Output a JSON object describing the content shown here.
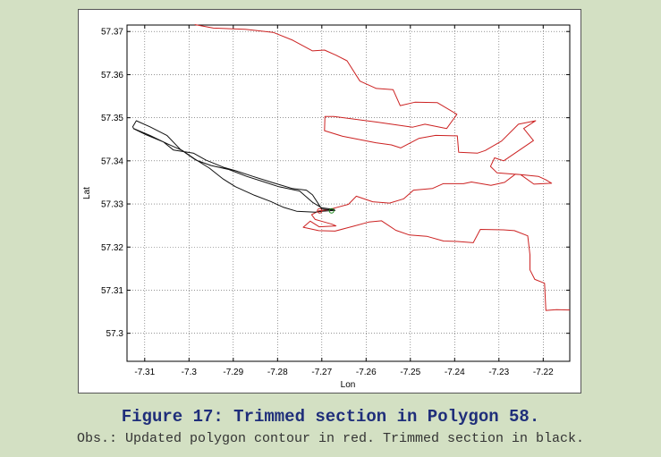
{
  "caption": {
    "title": "Figure 17: Trimmed section in Polygon 58.",
    "note": "Obs.: Updated polygon contour in red. Trimmed section in black."
  },
  "chart_data": {
    "type": "line",
    "title": "",
    "xlabel": "Lon",
    "ylabel": "Lat",
    "xlim": [
      -7.314,
      -7.214
    ],
    "ylim": [
      57.2935,
      57.3715
    ],
    "grid": true,
    "xticks": [
      -7.31,
      -7.3,
      -7.29,
      -7.28,
      -7.27,
      -7.26,
      -7.25,
      -7.24,
      -7.23,
      -7.22
    ],
    "xtick_labels": [
      "-7.31",
      "-7.3",
      "-7.29",
      "-7.28",
      "-7.27",
      "-7.26",
      "-7.25",
      "-7.24",
      "-7.23",
      "-7.22"
    ],
    "yticks": [
      57.3,
      57.31,
      57.32,
      57.33,
      57.34,
      57.35,
      57.36,
      57.37
    ],
    "ytick_labels": [
      "57.3",
      "57.31",
      "57.32",
      "57.33",
      "57.34",
      "57.35",
      "57.36",
      "57.37"
    ],
    "series": [
      {
        "color": "#cc2222",
        "points": [
          [
            -7.2987,
            57.3716
          ],
          [
            -7.2945,
            57.3708
          ],
          [
            -7.2873,
            57.3705
          ],
          [
            -7.281,
            57.3698
          ],
          [
            -7.2766,
            57.368
          ],
          [
            -7.2721,
            57.3655
          ],
          [
            -7.2694,
            57.3657
          ],
          [
            -7.2668,
            57.3645
          ],
          [
            -7.2643,
            57.3632
          ],
          [
            -7.2614,
            57.3585
          ],
          [
            -7.2577,
            57.3568
          ],
          [
            -7.2539,
            57.3565
          ],
          [
            -7.2523,
            57.3528
          ],
          [
            -7.249,
            57.3536
          ],
          [
            -7.2439,
            57.3535
          ],
          [
            -7.2395,
            57.3508
          ],
          [
            -7.2418,
            57.3475
          ],
          [
            -7.2467,
            57.3485
          ],
          [
            -7.2495,
            57.3478
          ],
          [
            -7.2576,
            57.349
          ],
          [
            -7.2673,
            57.3503
          ],
          [
            -7.2693,
            57.3503
          ],
          [
            -7.2694,
            57.347
          ],
          [
            -7.2653,
            57.3457
          ],
          [
            -7.2578,
            57.3442
          ],
          [
            -7.2543,
            57.3437
          ],
          [
            -7.2522,
            57.343
          ],
          [
            -7.2481,
            57.3452
          ],
          [
            -7.2443,
            57.3459
          ],
          [
            -7.2394,
            57.3458
          ],
          [
            -7.2391,
            57.342
          ],
          [
            -7.2348,
            57.3418
          ],
          [
            -7.2331,
            57.3424
          ],
          [
            -7.2294,
            57.3446
          ],
          [
            -7.2256,
            57.3485
          ],
          [
            -7.2217,
            57.3493
          ],
          [
            -7.2244,
            57.3475
          ],
          [
            -7.2222,
            57.3447
          ],
          [
            -7.2289,
            57.34
          ],
          [
            -7.231,
            57.3407
          ],
          [
            -7.2319,
            57.3387
          ],
          [
            -7.2304,
            57.3372
          ],
          [
            -7.2266,
            57.3369
          ],
          [
            -7.2251,
            57.3368
          ],
          [
            -7.2221,
            57.3346
          ],
          [
            -7.2181,
            57.3348
          ],
          [
            -7.2194,
            57.3356
          ],
          [
            -7.2211,
            57.3364
          ],
          [
            -7.2251,
            57.3368
          ],
          [
            -7.2263,
            57.3369
          ],
          [
            -7.2287,
            57.335
          ],
          [
            -7.2318,
            57.3343
          ],
          [
            -7.2362,
            57.3351
          ],
          [
            -7.238,
            57.3347
          ],
          [
            -7.2426,
            57.3347
          ],
          [
            -7.245,
            57.3336
          ],
          [
            -7.2493,
            57.3332
          ],
          [
            -7.2515,
            57.3312
          ],
          [
            -7.2547,
            57.3302
          ],
          [
            -7.2585,
            57.3305
          ],
          [
            -7.2622,
            57.3318
          ],
          [
            -7.264,
            57.3299
          ],
          [
            -7.2688,
            57.3286
          ],
          [
            -7.2707,
            57.3284
          ],
          [
            -7.2723,
            57.3275
          ],
          [
            -7.2715,
            57.3264
          ],
          [
            -7.2694,
            57.3258
          ],
          [
            -7.2677,
            57.3253
          ],
          [
            -7.2668,
            57.3249
          ],
          [
            -7.2706,
            57.3247
          ],
          [
            -7.2726,
            57.326
          ],
          [
            -7.2742,
            57.3246
          ],
          [
            -7.2707,
            57.3238
          ],
          [
            -7.267,
            57.3237
          ],
          [
            -7.263,
            57.3248
          ],
          [
            -7.2594,
            57.3258
          ],
          [
            -7.2565,
            57.3261
          ],
          [
            -7.2533,
            57.3239
          ],
          [
            -7.2502,
            57.3228
          ],
          [
            -7.2463,
            57.3225
          ],
          [
            -7.2425,
            57.3214
          ],
          [
            -7.2394,
            57.3213
          ],
          [
            -7.2358,
            57.321
          ],
          [
            -7.2342,
            57.3241
          ],
          [
            -7.229,
            57.324
          ],
          [
            -7.2265,
            57.3238
          ],
          [
            -7.2235,
            57.3226
          ],
          [
            -7.223,
            57.3182
          ],
          [
            -7.223,
            57.3147
          ],
          [
            -7.2219,
            57.3125
          ],
          [
            -7.2197,
            57.3116
          ],
          [
            -7.2194,
            57.3053
          ],
          [
            -7.217,
            57.3055
          ],
          [
            -7.214,
            57.3054
          ]
        ]
      },
      {
        "color": "#111111",
        "points": [
          [
            -7.3126,
            57.3475
          ],
          [
            -7.3096,
            57.346
          ],
          [
            -7.3058,
            57.3444
          ],
          [
            -7.3035,
            57.3425
          ],
          [
            -7.299,
            57.3418
          ],
          [
            -7.2962,
            57.3402
          ],
          [
            -7.2922,
            57.3385
          ],
          [
            -7.2895,
            57.3377
          ],
          [
            -7.2856,
            57.3364
          ],
          [
            -7.281,
            57.3349
          ],
          [
            -7.2767,
            57.3336
          ],
          [
            -7.2735,
            57.3332
          ],
          [
            -7.2721,
            57.3321
          ],
          [
            -7.27,
            57.3288
          ],
          [
            -7.267,
            57.3285
          ],
          [
            -7.27,
            57.3283
          ],
          [
            -7.2715,
            57.3281
          ],
          [
            -7.2757,
            57.3283
          ],
          [
            -7.2786,
            57.3292
          ],
          [
            -7.2816,
            57.3306
          ],
          [
            -7.2852,
            57.332
          ],
          [
            -7.2895,
            57.334
          ],
          [
            -7.2923,
            57.3358
          ],
          [
            -7.2954,
            57.3383
          ],
          [
            -7.2988,
            57.3405
          ],
          [
            -7.3015,
            57.3424
          ],
          [
            -7.305,
            57.344
          ],
          [
            -7.3088,
            57.3459
          ],
          [
            -7.3125,
            57.3475
          ],
          [
            -7.3127,
            57.3479
          ],
          [
            -7.3119,
            57.3493
          ],
          [
            -7.3088,
            57.3479
          ],
          [
            -7.305,
            57.3459
          ],
          [
            -7.302,
            57.3427
          ],
          [
            -7.2985,
            57.3402
          ],
          [
            -7.295,
            57.3389
          ],
          [
            -7.291,
            57.338
          ],
          [
            -7.287,
            57.3364
          ],
          [
            -7.2833,
            57.3352
          ],
          [
            -7.2797,
            57.334
          ],
          [
            -7.275,
            57.333
          ],
          [
            -7.272,
            57.3303
          ],
          [
            -7.27,
            57.3291
          ],
          [
            -7.2671,
            57.3287
          ]
        ]
      }
    ],
    "markers": [
      {
        "x": -7.2705,
        "y": 57.3284,
        "color": "#cc2222"
      },
      {
        "x": -7.2678,
        "y": 57.3284,
        "color": "#1b8a1b"
      }
    ]
  }
}
